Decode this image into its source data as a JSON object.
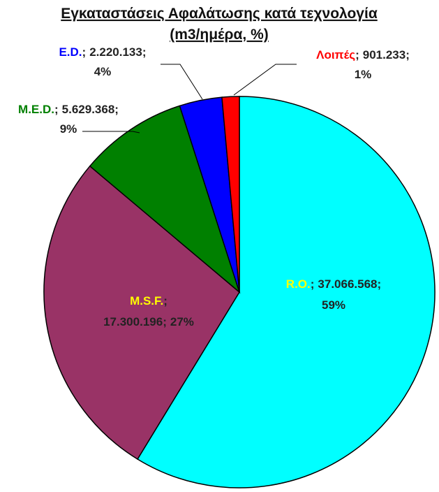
{
  "chart_data": {
    "type": "pie",
    "title": "Εγκαταστάσεις Αφαλάτωσης κατά τεχνολογία",
    "subtitle": "(m3/ημέρα, %)",
    "categories": [
      "R.O.",
      "M.S.F.",
      "M.E.D.",
      "E.D.",
      "Λοιπές"
    ],
    "values": [
      37066568,
      17300196,
      5629368,
      2220133,
      901233
    ],
    "value_labels": [
      "37.066.568",
      "17.300.196",
      "5.629.368",
      "2.220.133",
      "901.233"
    ],
    "shares": [
      59,
      27,
      9,
      4,
      1
    ],
    "share_labels": [
      "59%",
      "27%",
      "9%",
      "4%",
      "1%"
    ],
    "separator": ";",
    "colors": [
      "#00ffff",
      "#993366",
      "#008000",
      "#0000ff",
      "#ff0000"
    ],
    "label_colors": [
      "#ffff00",
      "#ffff00",
      "#008000",
      "#0000ff",
      "#ff0000"
    ]
  }
}
